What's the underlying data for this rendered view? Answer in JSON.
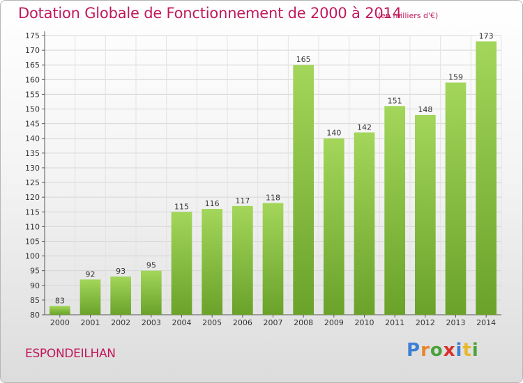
{
  "chart_data": {
    "type": "bar",
    "title": "Dotation Globale de Fonctionnement de 2000 à 2014",
    "subtitle": "(en milliers d'€)",
    "categories": [
      "2000",
      "2001",
      "2002",
      "2003",
      "2004",
      "2005",
      "2006",
      "2007",
      "2008",
      "2009",
      "2010",
      "2011",
      "2012",
      "2013",
      "2014"
    ],
    "values": [
      83,
      92,
      93,
      95,
      115,
      116,
      117,
      118,
      165,
      140,
      142,
      151,
      148,
      159,
      173
    ],
    "xlabel": "",
    "ylabel": "",
    "ylim": [
      80,
      175
    ],
    "yticks": [
      80,
      85,
      90,
      95,
      100,
      105,
      110,
      115,
      120,
      125,
      130,
      135,
      140,
      145,
      150,
      155,
      160,
      165,
      170,
      175
    ],
    "grid": true,
    "bar_color_light": "#a3d65a",
    "bar_color_dark": "#6aa22a"
  },
  "footer": {
    "commune": "ESPONDEILHAN",
    "logo_letters": [
      {
        "ch": "P",
        "color": "#3b7fd4"
      },
      {
        "ch": "r",
        "color": "#e8842a"
      },
      {
        "ch": "o",
        "color": "#4aa23a"
      },
      {
        "ch": "x",
        "color": "#d8302a"
      },
      {
        "ch": "i",
        "color": "#3b7fd4"
      },
      {
        "ch": "t",
        "color": "#e8b82a"
      },
      {
        "ch": "i",
        "color": "#4aa23a"
      }
    ]
  }
}
